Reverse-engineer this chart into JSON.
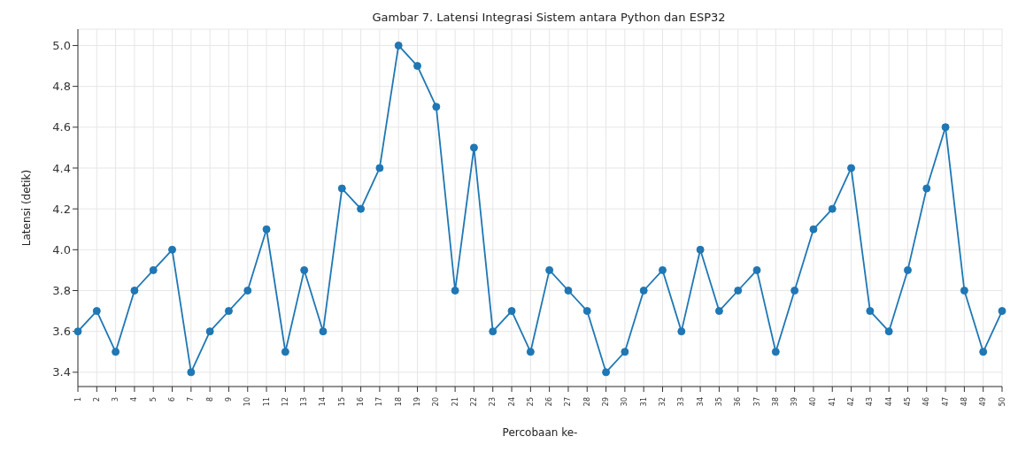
{
  "chart_data": {
    "type": "line",
    "title": "Gambar 7. Latensi Integrasi Sistem antara Python dan ESP32",
    "xlabel": "Percobaan ke-",
    "ylabel": "Latensi (detik)",
    "categories": [
      "1",
      "2",
      "3",
      "4",
      "5",
      "6",
      "7",
      "8",
      "9",
      "10",
      "11",
      "12",
      "13",
      "14",
      "15",
      "16",
      "17",
      "18",
      "19",
      "20",
      "21",
      "22",
      "23",
      "24",
      "25",
      "26",
      "27",
      "28",
      "29",
      "30",
      "31",
      "32",
      "33",
      "34",
      "35",
      "36",
      "37",
      "38",
      "39",
      "40",
      "41",
      "42",
      "43",
      "44",
      "45",
      "46",
      "47",
      "48",
      "49",
      "50"
    ],
    "series": [
      {
        "color": "#1f77b4",
        "values": [
          3.6,
          3.7,
          3.5,
          3.8,
          3.9,
          4.0,
          3.4,
          3.6,
          3.7,
          3.8,
          4.1,
          3.5,
          3.9,
          3.6,
          4.3,
          4.2,
          4.4,
          5.0,
          4.9,
          4.7,
          3.8,
          4.5,
          3.6,
          3.7,
          3.5,
          3.9,
          3.8,
          3.7,
          3.4,
          3.5,
          3.8,
          3.9,
          3.6,
          4.0,
          3.7,
          3.8,
          3.9,
          3.5,
          3.8,
          4.1,
          4.2,
          4.4,
          3.7,
          3.6,
          3.9,
          4.3,
          4.6,
          3.8,
          3.5,
          3.7
        ]
      }
    ],
    "ylim": [
      3.33,
      5.08
    ],
    "yticks": [
      {
        "value": 3.4,
        "label": "3.4"
      },
      {
        "value": 3.6,
        "label": "3.6"
      },
      {
        "value": 3.8,
        "label": "3.8"
      },
      {
        "value": 4.0,
        "label": "4.0"
      },
      {
        "value": 4.2,
        "label": "4.2"
      },
      {
        "value": 4.4,
        "label": "4.4"
      },
      {
        "value": 4.6,
        "label": "4.6"
      },
      {
        "value": 4.8,
        "label": "4.8"
      },
      {
        "value": 5.0,
        "label": "5.0"
      }
    ],
    "grid": true,
    "marker": "circle",
    "line_style": "solid"
  }
}
